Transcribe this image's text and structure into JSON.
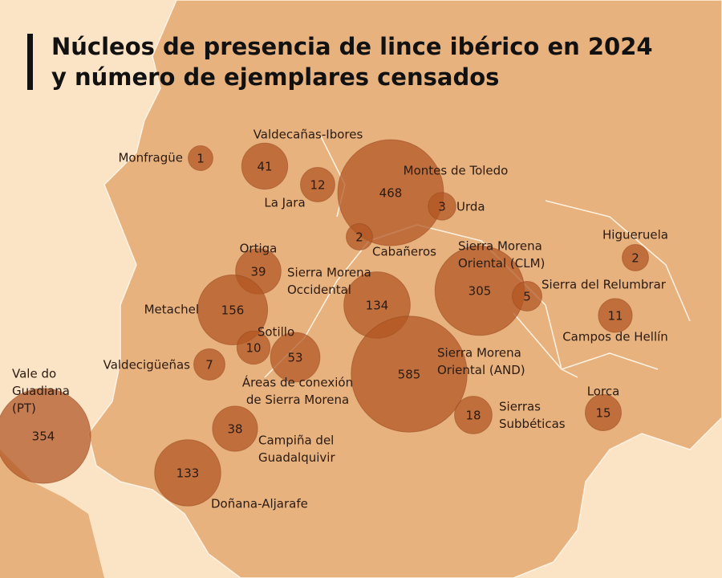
{
  "title": [
    "Núcleos de presencia de lince ibérico en 2024",
    "y número de ejemplares censados"
  ],
  "nuclei": [
    {
      "name": [
        "Monfragüe"
      ],
      "value": 1
    },
    {
      "name": [
        "Valdecañas-Ibores"
      ],
      "value": 41
    },
    {
      "name": [
        "La Jara"
      ],
      "value": 12
    },
    {
      "name": [
        "Montes de Toledo"
      ],
      "value": 468
    },
    {
      "name": [
        "Urda"
      ],
      "value": 3
    },
    {
      "name": [
        "Cabañeros"
      ],
      "value": 2
    },
    {
      "name": [
        "Higueruela"
      ],
      "value": 2
    },
    {
      "name": [
        "Sierra Morena",
        "Oriental (CLM)"
      ],
      "value": 305
    },
    {
      "name": [
        "Ortiga"
      ],
      "value": 39
    },
    {
      "name": [
        "Sierra Morena",
        "Occidental"
      ],
      "value": 134
    },
    {
      "name": [
        "Sierra del Relumbrar"
      ],
      "value": 5
    },
    {
      "name": [
        "Metachel"
      ],
      "value": 156
    },
    {
      "name": [
        "Campos de Hellín"
      ],
      "value": 11
    },
    {
      "name": [
        "Sotillo"
      ],
      "value": 10
    },
    {
      "name": [
        "Áreas de conexión",
        "de Sierra Morena"
      ],
      "value": 53
    },
    {
      "name": [
        "Valdecigüeñas"
      ],
      "value": 7
    },
    {
      "name": [
        "Sierra Morena",
        "Oriental (AND)"
      ],
      "value": 585
    },
    {
      "name": [
        "Vale do",
        "Guadiana",
        "(PT)"
      ],
      "value": 354
    },
    {
      "name": [
        "Sierras",
        "Subbéticas"
      ],
      "value": 18
    },
    {
      "name": [
        "Lorca"
      ],
      "value": 15
    },
    {
      "name": [
        "Campiña del",
        "Guadalquivir"
      ],
      "value": 38
    },
    {
      "name": [
        "Doñana-Aljarafe"
      ],
      "value": 133
    }
  ]
}
